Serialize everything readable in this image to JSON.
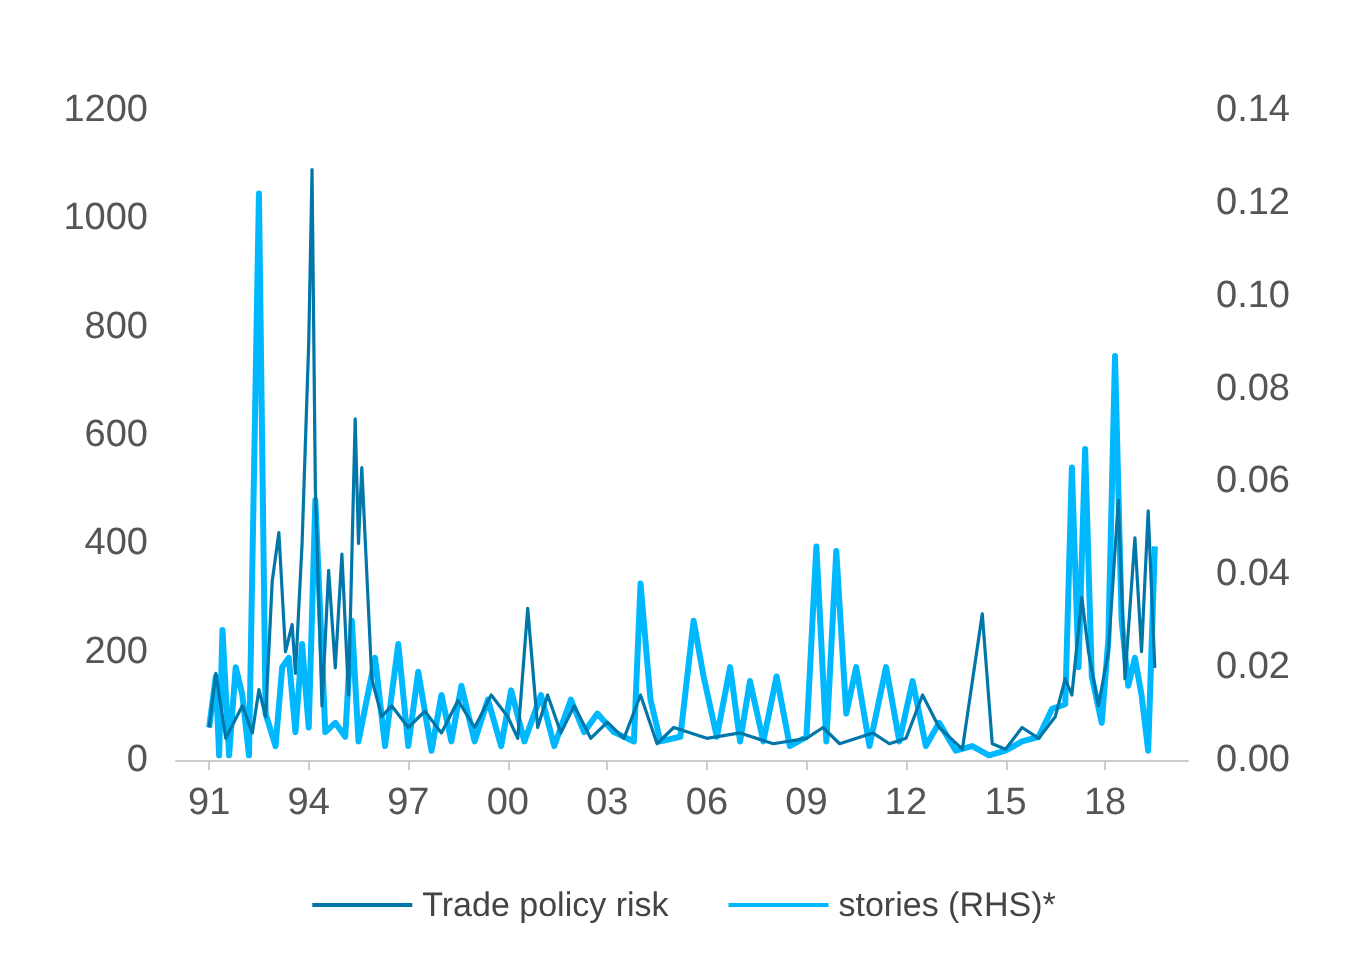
{
  "chart_data": {
    "type": "line",
    "legend": "bottom",
    "grid": false,
    "marker": "none",
    "line_style": "solid",
    "xlim": [
      1990,
      2020.5
    ],
    "xticks": [
      {
        "value": 1991,
        "label": "91"
      },
      {
        "value": 1994,
        "label": "94"
      },
      {
        "value": 1997,
        "label": "97"
      },
      {
        "value": 2000,
        "label": "00"
      },
      {
        "value": 2003,
        "label": "03"
      },
      {
        "value": 2006,
        "label": "06"
      },
      {
        "value": 2009,
        "label": "09"
      },
      {
        "value": 2012,
        "label": "12"
      },
      {
        "value": 2015,
        "label": "15"
      },
      {
        "value": 2018,
        "label": "18"
      }
    ],
    "ylim": [
      0,
      1200
    ],
    "yticks": [
      0,
      200,
      400,
      600,
      800,
      1000,
      1200
    ],
    "y2lim": [
      0,
      0.14
    ],
    "y2ticks": [
      {
        "value": 0,
        "label": "0.00"
      },
      {
        "value": 0.02,
        "label": "0.02"
      },
      {
        "value": 0.04,
        "label": "0.04"
      },
      {
        "value": 0.06,
        "label": "0.06"
      },
      {
        "value": 0.08,
        "label": "0.08"
      },
      {
        "value": 0.1,
        "label": "0.10"
      },
      {
        "value": 0.12,
        "label": "0.12"
      },
      {
        "value": 0.14,
        "label": "0.14"
      }
    ],
    "series": [
      {
        "name": "Trade policy risk",
        "color": "#0077a8",
        "x": [
          1991.0,
          1991.2,
          1991.5,
          1992.0,
          1992.3,
          1992.5,
          1992.7,
          1992.9,
          1993.1,
          1993.3,
          1993.5,
          1993.6,
          1993.8,
          1994.0,
          1994.1,
          1994.2,
          1994.4,
          1994.6,
          1994.8,
          1995.0,
          1995.2,
          1995.4,
          1995.5,
          1995.6,
          1995.9,
          1996.2,
          1996.5,
          1997.0,
          1997.5,
          1998.0,
          1998.5,
          1999.0,
          1999.5,
          2000.0,
          2000.3,
          2000.6,
          2000.9,
          2001.2,
          2001.6,
          2002.0,
          2002.5,
          2003.0,
          2003.5,
          2004.0,
          2004.5,
          2005.0,
          2006.0,
          2007.0,
          2008.0,
          2009.0,
          2009.5,
          2010.0,
          2011.0,
          2011.5,
          2012.0,
          2012.5,
          2013.0,
          2013.7,
          2014.3,
          2014.6,
          2015.0,
          2015.5,
          2016.0,
          2016.5,
          2016.8,
          2017.0,
          2017.3,
          2017.5,
          2017.8,
          2018.1,
          2018.4,
          2018.6,
          2018.9,
          2019.1,
          2019.3,
          2019.5
        ],
        "values": [
          60,
          160,
          40,
          100,
          50,
          130,
          80,
          330,
          420,
          200,
          250,
          160,
          400,
          770,
          1090,
          500,
          100,
          350,
          170,
          380,
          120,
          630,
          400,
          540,
          150,
          80,
          100,
          60,
          90,
          50,
          110,
          60,
          120,
          80,
          40,
          280,
          60,
          120,
          50,
          100,
          40,
          70,
          40,
          120,
          30,
          60,
          40,
          50,
          30,
          40,
          60,
          30,
          50,
          30,
          40,
          120,
          60,
          20,
          270,
          30,
          20,
          60,
          40,
          80,
          150,
          120,
          300,
          200,
          100,
          200,
          480,
          150,
          410,
          200,
          460,
          170
        ]
      },
      {
        "name": "stories (RHS)*",
        "color": "#00b8ff",
        "axis": "y2",
        "x": [
          1991.0,
          1991.2,
          1991.3,
          1991.4,
          1991.6,
          1991.8,
          1992.0,
          1992.2,
          1992.5,
          1992.7,
          1993.0,
          1993.2,
          1993.4,
          1993.6,
          1993.8,
          1994.0,
          1994.2,
          1994.5,
          1994.8,
          1995.1,
          1995.3,
          1995.5,
          1996.0,
          1996.3,
          1996.7,
          1997.0,
          1997.3,
          1997.7,
          1998.0,
          1998.3,
          1998.6,
          1999.0,
          1999.4,
          1999.8,
          2000.1,
          2000.5,
          2001.0,
          2001.4,
          2001.9,
          2002.3,
          2002.7,
          2003.2,
          2003.8,
          2004.0,
          2004.3,
          2004.6,
          2005.2,
          2005.6,
          2005.9,
          2006.3,
          2006.7,
          2007.0,
          2007.3,
          2007.7,
          2008.1,
          2008.5,
          2009.0,
          2009.3,
          2009.6,
          2009.9,
          2010.2,
          2010.5,
          2010.9,
          2011.4,
          2011.8,
          2012.2,
          2012.6,
          2013.0,
          2013.5,
          2014.0,
          2014.5,
          2015.0,
          2015.5,
          2016.0,
          2016.4,
          2016.8,
          2017.0,
          2017.2,
          2017.4,
          2017.6,
          2017.9,
          2018.1,
          2018.3,
          2018.5,
          2018.7,
          2018.9,
          2019.1,
          2019.3,
          2019.5
        ],
        "values": [
          0.007,
          0.018,
          0.001,
          0.028,
          0.001,
          0.02,
          0.014,
          0.001,
          0.122,
          0.01,
          0.003,
          0.02,
          0.022,
          0.006,
          0.025,
          0.007,
          0.056,
          0.006,
          0.008,
          0.005,
          0.03,
          0.004,
          0.022,
          0.003,
          0.025,
          0.003,
          0.019,
          0.002,
          0.014,
          0.004,
          0.016,
          0.004,
          0.013,
          0.003,
          0.015,
          0.004,
          0.014,
          0.003,
          0.013,
          0.006,
          0.01,
          0.006,
          0.004,
          0.038,
          0.013,
          0.004,
          0.005,
          0.03,
          0.018,
          0.005,
          0.02,
          0.004,
          0.017,
          0.004,
          0.018,
          0.003,
          0.005,
          0.046,
          0.004,
          0.045,
          0.01,
          0.02,
          0.003,
          0.02,
          0.004,
          0.017,
          0.003,
          0.008,
          0.002,
          0.003,
          0.001,
          0.002,
          0.004,
          0.005,
          0.011,
          0.012,
          0.063,
          0.02,
          0.067,
          0.018,
          0.008,
          0.026,
          0.087,
          0.03,
          0.016,
          0.022,
          0.014,
          0.002,
          0.046
        ]
      }
    ]
  }
}
